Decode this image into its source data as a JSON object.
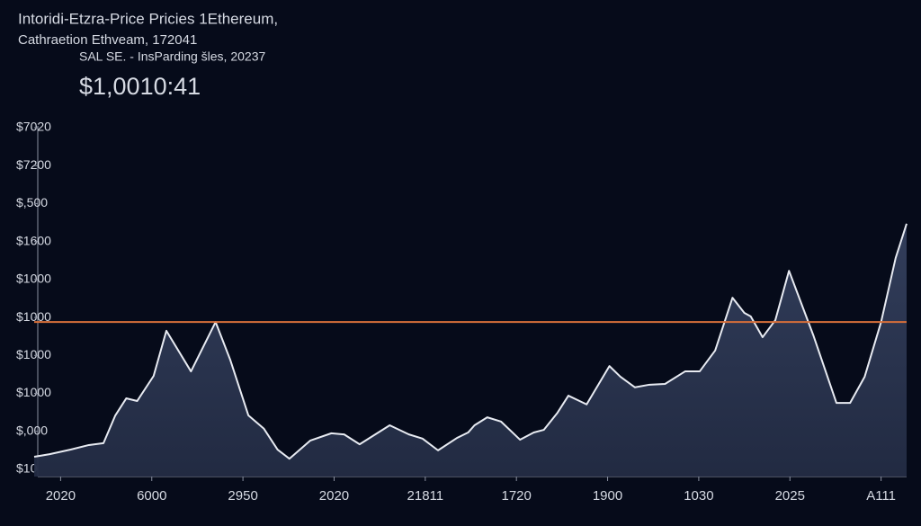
{
  "chart_data": {
    "type": "area",
    "title": "Intoridi-Etzra-Price Pricies 1Ethereum,",
    "subtitle": "Cathraetion Ethveam, 172041",
    "note": "SAL SE. - InsParding šles, 20237",
    "headline": "$1,0010:41",
    "x": [
      -0.29,
      -0.12,
      0.11,
      0.31,
      0.47,
      0.6,
      0.72,
      0.84,
      1.02,
      1.16,
      1.43,
      1.7,
      1.86,
      2.06,
      2.23,
      2.38,
      2.51,
      2.74,
      2.97,
      3.11,
      3.28,
      3.61,
      3.82,
      3.97,
      4.14,
      4.35,
      4.47,
      4.54,
      4.68,
      4.83,
      5.04,
      5.19,
      5.3,
      5.45,
      5.57,
      5.77,
      6.02,
      6.14,
      6.3,
      6.46,
      6.63,
      6.85,
      7.01,
      7.18,
      7.37,
      7.5,
      7.57,
      7.7,
      7.84,
      7.99,
      8.26,
      8.51,
      8.66,
      8.82,
      9.0,
      9.16,
      9.28
    ],
    "values": [
      0.33,
      0.4,
      0.52,
      0.64,
      0.69,
      1.42,
      1.87,
      1.8,
      2.46,
      3.65,
      2.58,
      3.88,
      2.89,
      1.42,
      1.07,
      0.52,
      0.28,
      0.76,
      0.95,
      0.92,
      0.66,
      1.16,
      0.92,
      0.81,
      0.5,
      0.83,
      0.97,
      1.16,
      1.37,
      1.26,
      0.78,
      0.97,
      1.04,
      1.49,
      1.94,
      1.71,
      2.72,
      2.44,
      2.16,
      2.23,
      2.25,
      2.58,
      2.58,
      3.13,
      4.52,
      4.12,
      4.03,
      3.48,
      3.93,
      5.23,
      3.51,
      1.75,
      1.75,
      2.44,
      3.88,
      5.57,
      6.47
    ],
    "color": "#e8ebf2",
    "fill": "#2a3450",
    "reference_line": 3.88,
    "reference_color": "#d8703a",
    "xlim": [
      -0.29,
      9.28
    ],
    "xticks": [
      {
        "value": 0,
        "label": "2020"
      },
      {
        "value": 1,
        "label": "6000"
      },
      {
        "value": 2,
        "label": "2950"
      },
      {
        "value": 3,
        "label": "2020"
      },
      {
        "value": 4,
        "label": "21811"
      },
      {
        "value": 5,
        "label": "1720"
      },
      {
        "value": 6,
        "label": "1900"
      },
      {
        "value": 7,
        "label": "1030"
      },
      {
        "value": 8,
        "label": "2025"
      },
      {
        "value": 9,
        "label": "A111"
      }
    ],
    "ylim": [
      -0.19,
      9.0
    ],
    "yticks": [
      {
        "value": 9,
        "label": "$7020"
      },
      {
        "value": 8,
        "label": "$7200"
      },
      {
        "value": 7,
        "label": "$,500"
      },
      {
        "value": 6,
        "label": "$1600"
      },
      {
        "value": 5,
        "label": "$1000"
      },
      {
        "value": 4,
        "label": "$1000"
      },
      {
        "value": 3,
        "label": "$1000"
      },
      {
        "value": 2,
        "label": "$1000"
      },
      {
        "value": 1,
        "label": "$,000"
      },
      {
        "value": 0,
        "label": "$10"
      }
    ]
  }
}
